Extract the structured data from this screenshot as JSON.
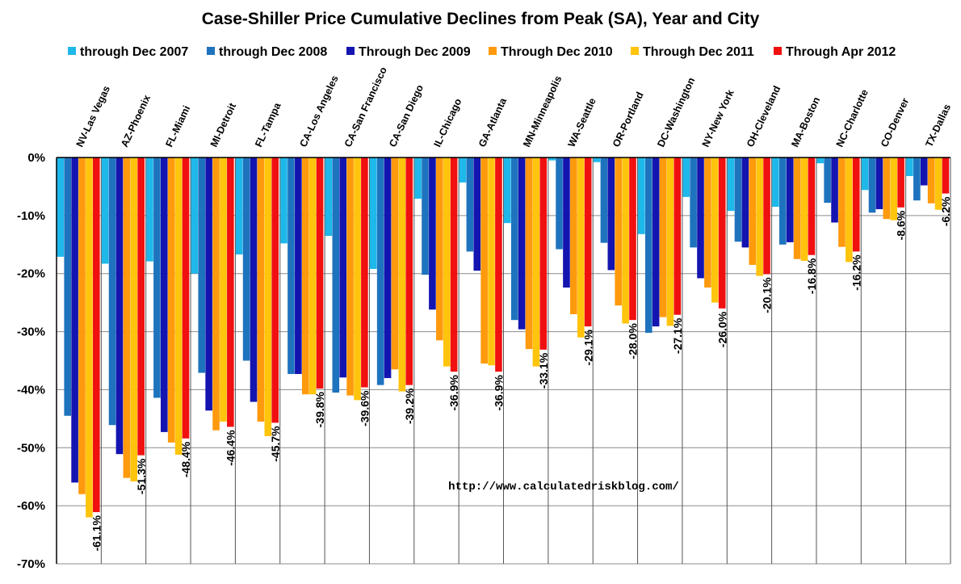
{
  "chart_data": {
    "type": "bar",
    "title": "Case-Shiller Price Cumulative Declines from Peak (SA),  Year and City",
    "annotation": "http://www.calculatedriskblog.com/",
    "ylim": [
      -70,
      0
    ],
    "yticks": [
      0,
      -10,
      -20,
      -30,
      -40,
      -50,
      -60,
      -70
    ],
    "ytick_labels": [
      "0%",
      "-10%",
      "-20%",
      "-30%",
      "-40%",
      "-50%",
      "-60%",
      "-70%"
    ],
    "grid": true,
    "legend_position": "top",
    "categories": [
      "NV-Las Vegas",
      "AZ-Phoenix",
      "FL-Miami",
      "MI-Detroit",
      "FL-Tampa",
      "CA-Los Angeles",
      "CA-San Francisco",
      "CA-San Diego",
      "IL-Chicago",
      "GA-Atlanta",
      "MN-Minneapolis",
      "WA-Seattle",
      "OR-Portland",
      "DC-Washington",
      "NY-New York",
      "OH-Cleveland",
      "MA-Boston",
      "NC-Charlotte",
      "CO-Denver",
      "TX-Dallas"
    ],
    "series": [
      {
        "name": "through Dec 2007",
        "color": "#1fb8ea",
        "values": [
          -17.1,
          -18.3,
          -17.9,
          -20.0,
          -16.7,
          -14.8,
          -13.5,
          -19.2,
          -7.1,
          -4.3,
          -11.3,
          -0.5,
          -0.8,
          -13.2,
          -6.8,
          -9.2,
          -8.5,
          -1.0,
          -5.6,
          -3.2
        ]
      },
      {
        "name": "through Dec 2008",
        "color": "#1e73be",
        "values": [
          -44.5,
          -46.1,
          -41.4,
          -37.1,
          -35.0,
          -37.3,
          -40.5,
          -39.2,
          -20.2,
          -16.2,
          -28.0,
          -15.8,
          -14.7,
          -30.2,
          -15.5,
          -14.5,
          -15.0,
          -7.8,
          -9.5,
          -7.4
        ]
      },
      {
        "name": "Through Dec 2009",
        "color": "#1414b0",
        "values": [
          -56.0,
          -51.1,
          -47.3,
          -43.6,
          -42.1,
          -37.3,
          -37.9,
          -38.0,
          -26.2,
          -19.5,
          -29.6,
          -22.4,
          -19.4,
          -29.1,
          -20.8,
          -15.5,
          -14.6,
          -11.2,
          -8.9,
          -4.8
        ]
      },
      {
        "name": "Through Dec 2010",
        "color": "#ff9a0d",
        "values": [
          -58.0,
          -55.2,
          -49.1,
          -47.0,
          -45.5,
          -40.8,
          -41.0,
          -36.5,
          -31.5,
          -35.5,
          -33.0,
          -27.0,
          -25.5,
          -27.5,
          -22.4,
          -18.5,
          -17.5,
          -15.4,
          -10.6,
          -7.9
        ]
      },
      {
        "name": "Through Dec 2011",
        "color": "#ffc40c",
        "values": [
          -62.0,
          -55.8,
          -51.2,
          -45.5,
          -48.0,
          -40.8,
          -41.8,
          -40.3,
          -36.0,
          -35.8,
          -36.0,
          -31.0,
          -28.6,
          -29.0,
          -25.0,
          -20.4,
          -17.8,
          -18.0,
          -10.8,
          -9.0
        ]
      },
      {
        "name": "Through Apr 2012",
        "color": "#f01010",
        "values": [
          -61.1,
          -51.3,
          -48.4,
          -46.4,
          -45.7,
          -39.8,
          -39.6,
          -39.2,
          -36.9,
          -36.9,
          -33.1,
          -29.1,
          -28.0,
          -27.1,
          -26.0,
          -20.1,
          -16.8,
          -16.2,
          -8.6,
          -6.2
        ]
      }
    ],
    "data_labels": [
      "-61.1%",
      "-51.3%",
      "-48.4%",
      "-46.4%",
      "-45.7%",
      "-39.8%",
      "-39.6%",
      "-39.2%",
      "-36.9%",
      "-36.9%",
      "-33.1%",
      "-29.1%",
      "-28.0%",
      "-27.1%",
      "-26.0%",
      "-20.1%",
      "-16.8%",
      "-16.2%",
      "-8.6%",
      "-6.2%"
    ]
  }
}
